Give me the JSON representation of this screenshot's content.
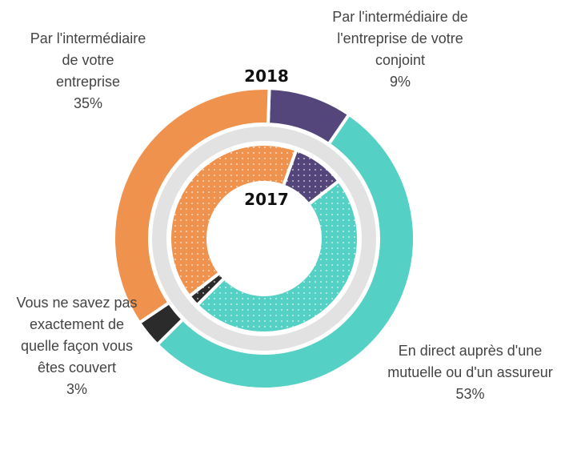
{
  "chart_data": {
    "type": "donut",
    "categories": [
      "Par l'intermédiaire de l'entreprise de votre conjoint",
      "En direct auprès d'une mutuelle ou d'un assureur",
      "Vous ne savez pas exactement de quelle façon vous êtes couvert",
      "Par l'intermédiaire de votre entreprise"
    ],
    "colors": [
      "#54457a",
      "#55d0c4",
      "#2b2b2b",
      "#ef924d"
    ],
    "series": [
      {
        "name": "2018",
        "values": [
          9,
          53,
          3,
          35
        ],
        "value_labels": [
          "9%",
          "53%",
          "3%",
          "35%"
        ]
      },
      {
        "name": "2017",
        "values": [
          9,
          48,
          2,
          41
        ]
      }
    ]
  }
}
